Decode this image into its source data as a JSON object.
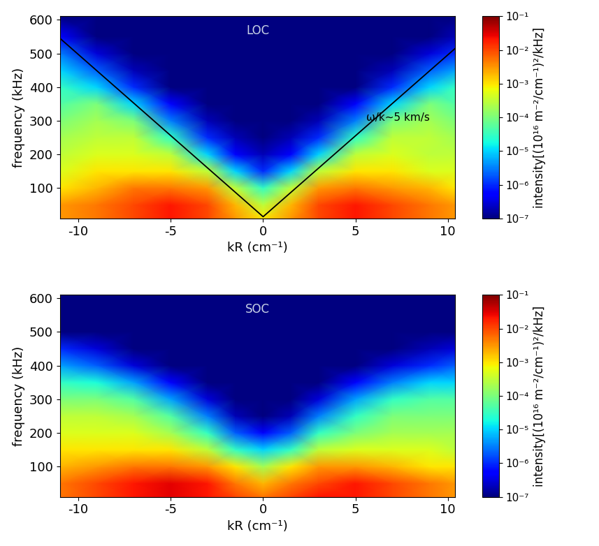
{
  "chart_data": [
    {
      "type": "heatmap",
      "title": "LOC",
      "x_label": "kR (cm⁻¹)",
      "y_label": "frequency (kHz)",
      "xlim": [
        -11,
        10.4
      ],
      "ylim": [
        10,
        610
      ],
      "xticks": [
        -10,
        -5,
        0,
        5,
        10
      ],
      "yticks": [
        100,
        200,
        300,
        400,
        500,
        600
      ],
      "x": [
        -11,
        -9,
        -7,
        -5,
        -3,
        -1.5,
        0,
        1.5,
        3,
        5,
        7,
        9,
        10.4
      ],
      "y": [
        10,
        50,
        100,
        150,
        200,
        250,
        300,
        350,
        400,
        450,
        500,
        550,
        610
      ],
      "cells": [
        [
          0.003,
          0.005,
          0.01,
          0.02,
          0.01,
          0.003,
          0.001,
          0.003,
          0.01,
          0.02,
          0.01,
          0.005,
          0.003
        ],
        [
          0.003,
          0.005,
          0.01,
          0.02,
          0.01,
          0.002,
          0.0003,
          0.002,
          0.01,
          0.02,
          0.01,
          0.005,
          0.003
        ],
        [
          0.001,
          0.002,
          0.005,
          0.005,
          0.003,
          0.0003,
          3e-05,
          0.0003,
          0.003,
          0.005,
          0.003,
          0.002,
          0.001
        ],
        [
          0.0005,
          0.001,
          0.001,
          0.001,
          0.0003,
          1e-05,
          1e-06,
          1e-05,
          0.0003,
          0.001,
          0.001,
          0.0005,
          0.0005
        ],
        [
          0.0003,
          0.0005,
          0.0005,
          0.0003,
          1e-05,
          5e-07,
          2e-07,
          5e-07,
          1e-05,
          0.0003,
          0.0005,
          0.0003,
          0.0003
        ],
        [
          0.0002,
          0.0003,
          0.0003,
          3e-05,
          1e-06,
          2e-07,
          1e-07,
          2e-07,
          1e-06,
          3e-05,
          0.0003,
          0.0003,
          0.0002
        ],
        [
          0.0001,
          0.0002,
          0.0001,
          3e-06,
          2e-07,
          1e-07,
          1e-07,
          1e-07,
          2e-07,
          3e-06,
          0.0001,
          0.0002,
          0.0001
        ],
        [
          5e-05,
          0.0001,
          1e-05,
          5e-07,
          1e-07,
          1e-07,
          1e-07,
          1e-07,
          1e-07,
          5e-07,
          1e-05,
          0.0001,
          5e-05
        ],
        [
          3e-05,
          1e-05,
          1e-06,
          1e-07,
          1e-07,
          1e-07,
          1e-07,
          1e-07,
          1e-07,
          1e-07,
          1e-06,
          1e-05,
          3e-05
        ],
        [
          1e-05,
          2e-06,
          2e-07,
          1e-07,
          1e-07,
          1e-07,
          1e-07,
          1e-07,
          1e-07,
          1e-07,
          2e-07,
          2e-06,
          5e-06
        ],
        [
          3e-06,
          3e-07,
          1e-07,
          1e-07,
          1e-07,
          1e-07,
          1e-07,
          1e-07,
          1e-07,
          1e-07,
          1e-07,
          3e-07,
          1e-06
        ],
        [
          5e-07,
          1e-07,
          1e-07,
          1e-07,
          1e-07,
          1e-07,
          1e-07,
          1e-07,
          1e-07,
          1e-07,
          1e-07,
          1e-07,
          2e-07
        ],
        [
          1e-07,
          1e-07,
          1e-07,
          1e-07,
          1e-07,
          1e-07,
          1e-07,
          1e-07,
          1e-07,
          1e-07,
          1e-07,
          1e-07,
          1e-07
        ]
      ],
      "colorbar": {
        "range": [
          1e-07,
          0.1
        ],
        "label": "intensity[(10¹⁶ m⁻²/cm⁻¹)²/kHz]",
        "ticks": [
          {
            "value": 1e-07,
            "label": "10⁻⁷"
          },
          {
            "value": 1e-06,
            "label": "10⁻⁶"
          },
          {
            "value": 1e-05,
            "label": "10⁻⁵"
          },
          {
            "value": 0.0001,
            "label": "10⁻⁴"
          },
          {
            "value": 0.001,
            "label": "10⁻³"
          },
          {
            "value": 0.01,
            "label": "10⁻²"
          },
          {
            "value": 0.1,
            "label": "10⁻¹"
          }
        ]
      },
      "lines": [
        {
          "x": [
            -11,
            0,
            10.4
          ],
          "y": [
            545,
            15,
            515
          ],
          "color": "#000000"
        }
      ],
      "annotation": "ω/k~5 km/s"
    },
    {
      "type": "heatmap",
      "title": "SOC",
      "x_label": "kR (cm⁻¹)",
      "y_label": "frequency (kHz)",
      "xlim": [
        -11,
        10.4
      ],
      "ylim": [
        10,
        610
      ],
      "xticks": [
        -10,
        -5,
        0,
        5,
        10
      ],
      "yticks": [
        100,
        200,
        300,
        400,
        500,
        600
      ],
      "x": [
        -11,
        -9,
        -7,
        -5,
        -3,
        -1.5,
        0,
        1.5,
        3,
        5,
        7,
        9,
        10.4
      ],
      "y": [
        10,
        50,
        100,
        150,
        200,
        250,
        300,
        350,
        400,
        450,
        500,
        550,
        610
      ],
      "cells": [
        [
          0.005,
          0.01,
          0.02,
          0.03,
          0.02,
          0.01,
          0.005,
          0.01,
          0.02,
          0.02,
          0.01,
          0.005,
          0.003
        ],
        [
          0.005,
          0.01,
          0.02,
          0.03,
          0.02,
          0.005,
          0.002,
          0.005,
          0.01,
          0.02,
          0.01,
          0.005,
          0.003
        ],
        [
          0.002,
          0.003,
          0.005,
          0.005,
          0.003,
          0.001,
          0.0002,
          0.001,
          0.003,
          0.003,
          0.002,
          0.001,
          0.001
        ],
        [
          0.001,
          0.001,
          0.001,
          0.001,
          0.0003,
          3e-05,
          1e-05,
          3e-05,
          0.0003,
          0.0005,
          0.0005,
          0.0005,
          0.0003
        ],
        [
          0.0005,
          0.0005,
          0.0005,
          0.0002,
          3e-05,
          2e-06,
          5e-07,
          2e-06,
          3e-05,
          0.0001,
          0.0002,
          0.0002,
          0.0002
        ],
        [
          0.0003,
          0.0003,
          0.0002,
          5e-05,
          3e-06,
          2e-07,
          1e-07,
          2e-07,
          3e-06,
          3e-05,
          0.0001,
          0.0001,
          0.0001
        ],
        [
          0.0001,
          0.0001,
          5e-05,
          5e-06,
          3e-07,
          1e-07,
          1e-07,
          1e-07,
          3e-07,
          5e-06,
          3e-05,
          5e-05,
          5e-05
        ],
        [
          3e-05,
          2e-05,
          5e-06,
          5e-07,
          1e-07,
          1e-07,
          1e-07,
          1e-07,
          1e-07,
          5e-07,
          3e-06,
          1e-05,
          1e-05
        ],
        [
          5e-06,
          2e-06,
          3e-07,
          1e-07,
          1e-07,
          1e-07,
          1e-07,
          1e-07,
          1e-07,
          1e-07,
          3e-07,
          1e-06,
          2e-06
        ],
        [
          1e-06,
          3e-07,
          1e-07,
          1e-07,
          1e-07,
          1e-07,
          1e-07,
          1e-07,
          1e-07,
          1e-07,
          1e-07,
          2e-07,
          3e-07
        ],
        [
          1e-07,
          1e-07,
          1e-07,
          1e-07,
          1e-07,
          1e-07,
          1e-07,
          1e-07,
          1e-07,
          1e-07,
          1e-07,
          1e-07,
          1e-07
        ],
        [
          1e-07,
          1e-07,
          1e-07,
          1e-07,
          1e-07,
          1e-07,
          1e-07,
          1e-07,
          1e-07,
          1e-07,
          1e-07,
          1e-07,
          1e-07
        ],
        [
          1e-07,
          1e-07,
          1e-07,
          1e-07,
          1e-07,
          1e-07,
          1e-07,
          1e-07,
          1e-07,
          1e-07,
          1e-07,
          1e-07,
          1e-07
        ]
      ],
      "colorbar": {
        "range": [
          1e-07,
          0.1
        ],
        "label": "intensity[(10¹⁶ m⁻²/cm⁻¹)²/kHz]",
        "ticks": [
          {
            "value": 1e-07,
            "label": "10⁻⁷"
          },
          {
            "value": 1e-06,
            "label": "10⁻⁶"
          },
          {
            "value": 1e-05,
            "label": "10⁻⁵"
          },
          {
            "value": 0.0001,
            "label": "10⁻⁴"
          },
          {
            "value": 0.001,
            "label": "10⁻³"
          },
          {
            "value": 0.01,
            "label": "10⁻²"
          },
          {
            "value": 0.1,
            "label": "10⁻¹"
          }
        ]
      }
    }
  ]
}
